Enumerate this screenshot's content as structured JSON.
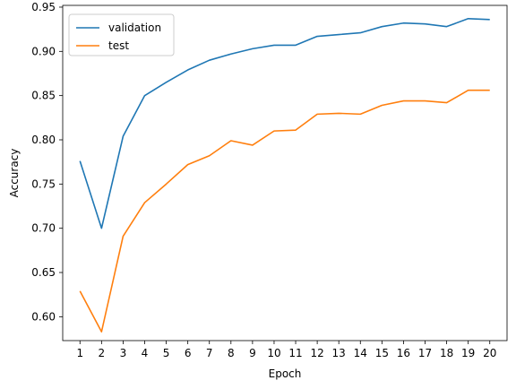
{
  "chart_data": {
    "type": "line",
    "xlabel": "Epoch",
    "ylabel": "Accuracy",
    "x": [
      1,
      2,
      3,
      4,
      5,
      6,
      7,
      8,
      9,
      10,
      11,
      12,
      13,
      14,
      15,
      16,
      17,
      18,
      19,
      20
    ],
    "xlim": [
      0.2,
      20.8
    ],
    "ylim": [
      0.573,
      0.952
    ],
    "yticks": [
      0.6,
      0.65,
      0.7,
      0.75,
      0.8,
      0.85,
      0.9,
      0.95
    ],
    "grid": false,
    "legend_position": "top-left",
    "series": [
      {
        "name": "validation",
        "color": "#1f77b4",
        "values": [
          0.776,
          0.7,
          0.804,
          0.85,
          0.865,
          0.879,
          0.89,
          0.897,
          0.903,
          0.907,
          0.907,
          0.917,
          0.919,
          0.921,
          0.928,
          0.932,
          0.931,
          0.928,
          0.937,
          0.936
        ]
      },
      {
        "name": "test",
        "color": "#ff7f0e",
        "values": [
          0.629,
          0.583,
          0.691,
          0.729,
          0.75,
          0.772,
          0.782,
          0.799,
          0.794,
          0.81,
          0.811,
          0.829,
          0.83,
          0.829,
          0.839,
          0.844,
          0.844,
          0.842,
          0.856,
          0.856
        ]
      }
    ]
  }
}
